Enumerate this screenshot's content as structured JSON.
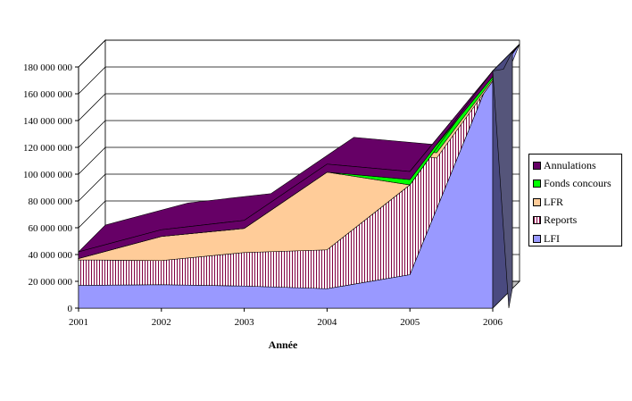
{
  "chart_data": {
    "type": "area",
    "title": "",
    "xlabel": "Année",
    "ylabel": "",
    "x": [
      "2001",
      "2002",
      "2003",
      "2004",
      "2005",
      "2006"
    ],
    "ylim": [
      0,
      180000000
    ],
    "yticks": [
      "0",
      "20 000 000",
      "40 000 000",
      "60 000 000",
      "80 000 000",
      "100 000 000",
      "120 000 000",
      "140 000 000",
      "160 000 000",
      "180 000 000"
    ],
    "stacked": true,
    "grid": true,
    "legend_position": "right",
    "series": [
      {
        "name": "LFI",
        "values": [
          17000000,
          17500000,
          16500000,
          14500000,
          25000000,
          177000000
        ],
        "color": "#9999ff",
        "pattern": "solid"
      },
      {
        "name": "Reports",
        "values": [
          19000000,
          18000000,
          25000000,
          29000000,
          67000000,
          0
        ],
        "color": "#800040",
        "pattern": "vertical-hatch"
      },
      {
        "name": "LFR",
        "values": [
          1000000,
          18000000,
          18000000,
          58000000,
          0,
          0
        ],
        "color": "#ffcc99",
        "pattern": "solid"
      },
      {
        "name": "Fonds concours",
        "values": [
          0,
          0,
          0,
          0,
          4000000,
          0
        ],
        "color": "#00ff00",
        "pattern": "solid"
      },
      {
        "name": "Annulations",
        "values": [
          5000000,
          5000000,
          6000000,
          6000000,
          6000000,
          0
        ],
        "color": "#660066",
        "pattern": "solid"
      }
    ]
  }
}
